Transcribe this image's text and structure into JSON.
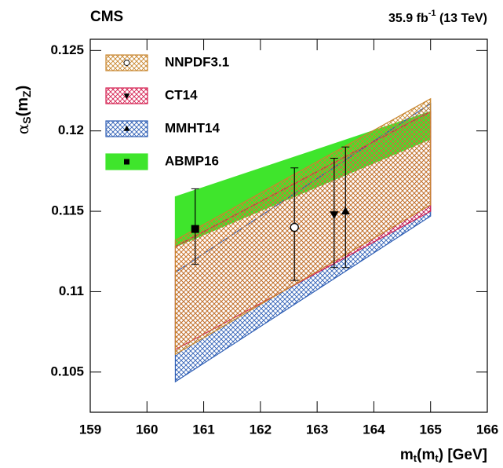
{
  "chart_data": {
    "type": "band",
    "title": "CMS",
    "lumi": {
      "value": "35.9 fb",
      "sup": "-1",
      "energy": " (13 TeV)"
    },
    "y_label": {
      "symbol": "α",
      "sub1": "S",
      "mid": "(m",
      "sub2": "Z",
      "end": ")"
    },
    "x_label": {
      "symbol": "m",
      "sub1": "t",
      "mid": "(m",
      "sub2": "t",
      "end": ") [GeV]"
    },
    "xlim": [
      159,
      166
    ],
    "xticks": [
      159,
      160,
      161,
      162,
      163,
      164,
      165,
      166
    ],
    "ylim": [
      0.1025,
      0.1257
    ],
    "yticks": [
      0.105,
      0.11,
      0.115,
      0.12,
      0.125
    ],
    "series": [
      {
        "name": "ABMP16",
        "color": "#3fe52c",
        "fill": "solid",
        "marker": "square",
        "band": {
          "x": [
            160.5,
            165
          ],
          "lower": [
            0.1128,
            0.1195
          ],
          "upper": [
            0.1159,
            0.1212
          ]
        },
        "point": {
          "x": 160.85,
          "y": 0.1139,
          "y_low": 0.1117,
          "y_high": 0.1164
        }
      },
      {
        "name": "MMHT14",
        "color": "#2f5fb5",
        "fill": "hatch",
        "marker": "triangle-up",
        "band": {
          "x": [
            160.5,
            165
          ],
          "lower": [
            0.1044,
            0.1147
          ],
          "upper": [
            0.1112,
            0.1217
          ]
        },
        "point": {
          "x": 163.5,
          "y": 0.115,
          "y_low": 0.1115,
          "y_high": 0.119
        }
      },
      {
        "name": "CT14",
        "color": "#d42050",
        "fill": "hatch",
        "marker": "triangle-down",
        "band": {
          "x": [
            160.5,
            165
          ],
          "lower": [
            0.1064,
            0.115
          ],
          "upper": [
            0.1128,
            0.1212
          ]
        },
        "point": {
          "x": 163.3,
          "y": 0.1148,
          "y_low": 0.1115,
          "y_high": 0.1183
        }
      },
      {
        "name": "NNPDF3.1",
        "color": "#c8862e",
        "fill": "hatch",
        "marker": "circle",
        "band": {
          "x": [
            160.5,
            165
          ],
          "lower": [
            0.1061,
            0.1154
          ],
          "upper": [
            0.1132,
            0.122
          ]
        },
        "point": {
          "x": 162.6,
          "y": 0.114,
          "y_low": 0.1107,
          "y_high": 0.1177
        }
      }
    ],
    "legend_order": [
      3,
      2,
      1,
      0
    ]
  }
}
